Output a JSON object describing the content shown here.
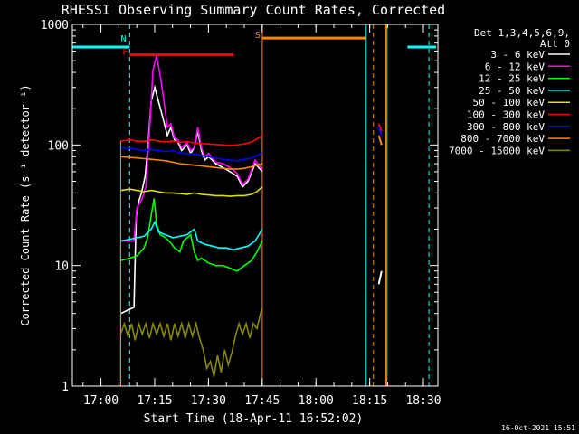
{
  "chart_data": {
    "type": "line",
    "title": "RHESSI Observing Summary Count Rates, Corrected",
    "xlabel": "Start Time (18-Apr-11 16:52:02)",
    "ylabel": "Corrected Count Rate (s⁻¹ detector⁻¹)",
    "ylog": true,
    "ylim": [
      1,
      1000
    ],
    "xlim_minutes_after_start": [
      0,
      102
    ],
    "x_ticks": [
      {
        "label": "17:00",
        "minute": 7.97
      },
      {
        "label": "17:15",
        "minute": 22.97
      },
      {
        "label": "17:30",
        "minute": 37.97
      },
      {
        "label": "17:45",
        "minute": 52.97
      },
      {
        "label": "18:00",
        "minute": 67.97
      },
      {
        "label": "18:15",
        "minute": 82.97
      },
      {
        "label": "18:30",
        "minute": 97.97
      }
    ],
    "y_ticks": [
      {
        "label": "1",
        "value": 1
      },
      {
        "label": "10",
        "value": 10
      },
      {
        "label": "100",
        "value": 100
      },
      {
        "label": "1000",
        "value": 1000
      }
    ],
    "legend_header": [
      "Det 1,3,4,5,6,9,",
      "Att 0"
    ],
    "legend_position": "right",
    "series": [
      {
        "name": "3 - 6 keV",
        "color": "#ffffff",
        "points": [
          [
            13.5,
            4
          ],
          [
            15,
            4.2
          ],
          [
            17.2,
            4.5
          ],
          [
            17.8,
            25
          ],
          [
            18.5,
            34
          ],
          [
            19.3,
            40
          ],
          [
            20.3,
            55
          ],
          [
            21,
            90
          ],
          [
            22,
            230
          ],
          [
            23,
            300
          ],
          [
            24,
            230
          ],
          [
            25,
            180
          ],
          [
            26.5,
            120
          ],
          [
            27.5,
            140
          ],
          [
            28.5,
            110
          ],
          [
            29.5,
            105
          ],
          [
            30.5,
            90
          ],
          [
            32,
            100
          ],
          [
            33,
            85
          ],
          [
            34,
            95
          ],
          [
            35,
            130
          ],
          [
            36,
            90
          ],
          [
            37,
            75
          ],
          [
            38,
            80
          ],
          [
            40,
            70
          ],
          [
            42,
            65
          ],
          [
            44,
            60
          ],
          [
            46,
            55
          ],
          [
            47.5,
            45
          ],
          [
            49,
            50
          ],
          [
            51,
            70
          ],
          [
            53,
            60
          ]
        ]
      },
      {
        "name": "6 - 12 keV",
        "color": "#ff00ff",
        "points": [
          [
            13.5,
            16
          ],
          [
            17.2,
            16
          ],
          [
            18,
            30
          ],
          [
            19.5,
            36
          ],
          [
            20.5,
            45
          ],
          [
            21.5,
            130
          ],
          [
            22.5,
            420
          ],
          [
            23.5,
            550
          ],
          [
            24.5,
            380
          ],
          [
            25.5,
            240
          ],
          [
            26.5,
            140
          ],
          [
            27.5,
            150
          ],
          [
            28.5,
            115
          ],
          [
            29.5,
            110
          ],
          [
            30.5,
            95
          ],
          [
            32,
            105
          ],
          [
            33,
            90
          ],
          [
            34,
            95
          ],
          [
            35,
            140
          ],
          [
            36,
            95
          ],
          [
            37,
            80
          ],
          [
            38,
            85
          ],
          [
            40,
            72
          ],
          [
            42,
            70
          ],
          [
            44,
            65
          ],
          [
            46,
            58
          ],
          [
            47.5,
            47
          ],
          [
            49,
            52
          ],
          [
            51,
            75
          ],
          [
            53,
            62
          ]
        ]
      },
      {
        "name": "12 - 25 keV",
        "color": "#00ff00",
        "points": [
          [
            13.5,
            11
          ],
          [
            16,
            11.5
          ],
          [
            18,
            12
          ],
          [
            20,
            14
          ],
          [
            21,
            17
          ],
          [
            22,
            26
          ],
          [
            22.8,
            36
          ],
          [
            23.5,
            22
          ],
          [
            24.5,
            18
          ],
          [
            26,
            17
          ],
          [
            27,
            16
          ],
          [
            28.5,
            14
          ],
          [
            30,
            13
          ],
          [
            31,
            16
          ],
          [
            33,
            18
          ],
          [
            34,
            13
          ],
          [
            35,
            11
          ],
          [
            36,
            11.5
          ],
          [
            38,
            10.5
          ],
          [
            40,
            10
          ],
          [
            42,
            10
          ],
          [
            44,
            9.5
          ],
          [
            46,
            9
          ],
          [
            48,
            10
          ],
          [
            50,
            11
          ],
          [
            51.5,
            13
          ],
          [
            53,
            16
          ]
        ]
      },
      {
        "name": "25 - 50 keV",
        "color": "#00ffff",
        "points": [
          [
            13.5,
            16
          ],
          [
            16,
            16.5
          ],
          [
            18,
            17
          ],
          [
            20,
            17.5
          ],
          [
            22,
            20
          ],
          [
            23,
            23
          ],
          [
            24,
            19
          ],
          [
            26,
            18
          ],
          [
            28,
            17
          ],
          [
            30,
            17.5
          ],
          [
            32,
            18
          ],
          [
            34,
            20
          ],
          [
            35,
            16
          ],
          [
            37,
            15
          ],
          [
            39,
            14.5
          ],
          [
            41,
            14
          ],
          [
            43,
            14
          ],
          [
            45,
            13.5
          ],
          [
            47,
            14
          ],
          [
            49,
            14.5
          ],
          [
            51,
            16
          ],
          [
            53,
            20
          ]
        ]
      },
      {
        "name": "50 - 100 keV",
        "color": "#dddd00",
        "points": [
          [
            13.5,
            42
          ],
          [
            16,
            43
          ],
          [
            18,
            42
          ],
          [
            20,
            41
          ],
          [
            22,
            42
          ],
          [
            24,
            41
          ],
          [
            26,
            40
          ],
          [
            28,
            40
          ],
          [
            30,
            39.5
          ],
          [
            32,
            39
          ],
          [
            34,
            40
          ],
          [
            36,
            39
          ],
          [
            38,
            38.5
          ],
          [
            40,
            38
          ],
          [
            42,
            38
          ],
          [
            44,
            37.5
          ],
          [
            46,
            38
          ],
          [
            48,
            38
          ],
          [
            50,
            39
          ],
          [
            51.5,
            41
          ],
          [
            53,
            45
          ]
        ]
      },
      {
        "name": "100 - 300 keV",
        "color": "#ff0000",
        "points": [
          [
            13.5,
            108
          ],
          [
            16,
            110
          ],
          [
            18,
            108
          ],
          [
            20,
            107
          ],
          [
            22,
            110
          ],
          [
            24,
            108
          ],
          [
            26,
            106
          ],
          [
            28,
            108
          ],
          [
            30,
            105
          ],
          [
            32,
            107
          ],
          [
            34,
            104
          ],
          [
            36,
            103
          ],
          [
            38,
            102
          ],
          [
            40,
            101
          ],
          [
            42,
            100
          ],
          [
            44,
            99
          ],
          [
            46,
            100
          ],
          [
            48,
            102
          ],
          [
            50,
            106
          ],
          [
            51.5,
            112
          ],
          [
            53,
            120
          ]
        ]
      },
      {
        "name": "300 - 800 keV",
        "color": "#0000ff",
        "points": [
          [
            13.5,
            95
          ],
          [
            16,
            94
          ],
          [
            18,
            92
          ],
          [
            20,
            90
          ],
          [
            22,
            92
          ],
          [
            24,
            90
          ],
          [
            26,
            88
          ],
          [
            28,
            90
          ],
          [
            30,
            86
          ],
          [
            32,
            85
          ],
          [
            34,
            84
          ],
          [
            36,
            82
          ],
          [
            38,
            80
          ],
          [
            40,
            78
          ],
          [
            42,
            76
          ],
          [
            44,
            75
          ],
          [
            46,
            74
          ],
          [
            48,
            76
          ],
          [
            50,
            78
          ],
          [
            51.5,
            82
          ],
          [
            53,
            86
          ]
        ]
      },
      {
        "name": "800 - 7000 keV",
        "color": "#ff8800",
        "points": [
          [
            13.5,
            80
          ],
          [
            16,
            79
          ],
          [
            18,
            78
          ],
          [
            20,
            77
          ],
          [
            22,
            76
          ],
          [
            24,
            75
          ],
          [
            26,
            74
          ],
          [
            28,
            72
          ],
          [
            30,
            70
          ],
          [
            32,
            69
          ],
          [
            34,
            68
          ],
          [
            36,
            67
          ],
          [
            38,
            66
          ],
          [
            40,
            65
          ],
          [
            42,
            64
          ],
          [
            44,
            63
          ],
          [
            46,
            63
          ],
          [
            48,
            64
          ],
          [
            50,
            66
          ],
          [
            51.5,
            68
          ],
          [
            53,
            70
          ]
        ]
      },
      {
        "name": "7000 - 15000 keV",
        "color": "#888800",
        "points": [
          [
            13.5,
            2.7
          ],
          [
            14.5,
            3.3
          ],
          [
            15.5,
            2.6
          ],
          [
            16.5,
            3.3
          ],
          [
            17.5,
            2.4
          ],
          [
            18.5,
            3.3
          ],
          [
            19.5,
            2.7
          ],
          [
            20.5,
            3.3
          ],
          [
            21.5,
            2.5
          ],
          [
            22.5,
            3.3
          ],
          [
            23.5,
            2.7
          ],
          [
            24.5,
            3.3
          ],
          [
            25.5,
            2.6
          ],
          [
            26.5,
            3.3
          ],
          [
            27.5,
            2.4
          ],
          [
            28.5,
            3.3
          ],
          [
            29.5,
            2.6
          ],
          [
            30.5,
            3.3
          ],
          [
            31.5,
            2.5
          ],
          [
            32.5,
            3.3
          ],
          [
            33.5,
            2.6
          ],
          [
            34.5,
            3.3
          ],
          [
            35.5,
            2.5
          ],
          [
            36.5,
            2.0
          ],
          [
            37.5,
            1.4
          ],
          [
            38.5,
            1.6
          ],
          [
            39.5,
            1.2
          ],
          [
            40.5,
            1.8
          ],
          [
            41.5,
            1.3
          ],
          [
            42.5,
            2.0
          ],
          [
            43.5,
            1.5
          ],
          [
            44.5,
            1.9
          ],
          [
            45.5,
            2.6
          ],
          [
            46.5,
            3.3
          ],
          [
            47.5,
            2.7
          ],
          [
            48.5,
            3.3
          ],
          [
            49.5,
            2.5
          ],
          [
            50.5,
            3.3
          ],
          [
            51.5,
            3.0
          ],
          [
            52.5,
            4.0
          ],
          [
            53,
            4.5
          ]
        ]
      }
    ],
    "late_segment": {
      "segments_minutes": [
        85.5,
        86.3
      ],
      "values": {
        "3 - 6 keV": [
          7,
          9
        ],
        "6 - 12 keV": [
          140,
          120
        ],
        "100 - 300 keV": [
          150,
          130
        ],
        "300 - 800 keV": [
          140,
          120
        ],
        "800 - 7000 keV": [
          120,
          100
        ]
      }
    },
    "orbit_bars": [
      {
        "label": "",
        "color": "#00ffff",
        "from": 0,
        "to": 14,
        "level": 650
      },
      {
        "label": "N",
        "color": "#00ffff",
        "from": 14,
        "to": 16,
        "level": 650
      },
      {
        "label": "",
        "color": "#00ffff",
        "from": 93.5,
        "to": 101.5,
        "level": 650
      }
    ],
    "flag_bars": [
      {
        "label": "F",
        "color": "#ff0000",
        "from": 16,
        "to": 45,
        "level": 560
      },
      {
        "label": "S",
        "color": "#ff8800",
        "from": 53,
        "to": 82,
        "level": 770
      }
    ],
    "vlines": [
      {
        "color": "#00ffff",
        "minute": 0,
        "style": "solid"
      },
      {
        "color": "#00ffff",
        "minute": 16,
        "style": "dash"
      },
      {
        "color": "#ff8800",
        "minute": 53,
        "style": "solid"
      },
      {
        "color": "#00ffff",
        "minute": 82,
        "style": "solid"
      },
      {
        "color": "#ff8800",
        "minute": 84,
        "style": "dash"
      },
      {
        "color": "#ff8800",
        "minute": 87.5,
        "style": "solid"
      },
      {
        "color": "#00ffff",
        "minute": 87.8,
        "style": "solid"
      },
      {
        "color": "#00ffff",
        "minute": 99.5,
        "style": "dash"
      }
    ],
    "timestamp": "16-Oct-2021 15:51"
  }
}
